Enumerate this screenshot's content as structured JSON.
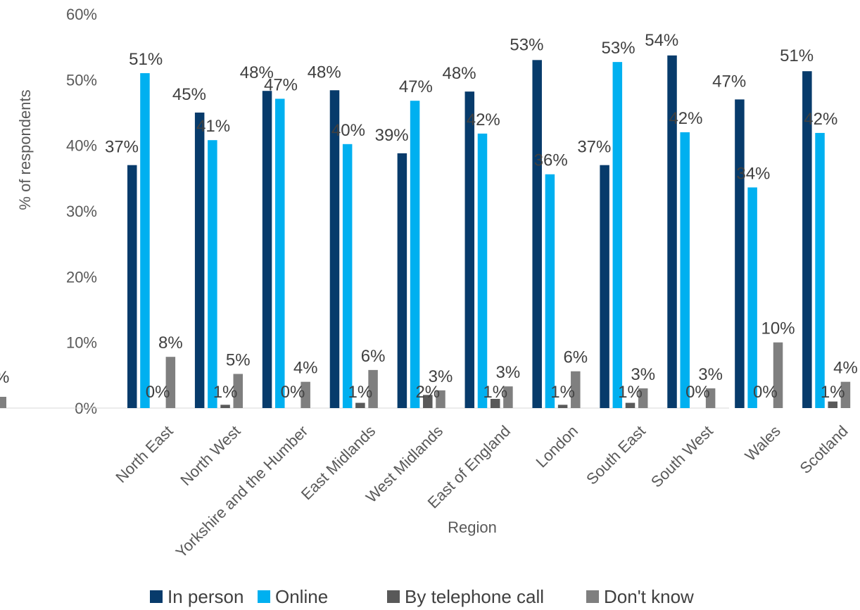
{
  "chart_data": {
    "type": "bar",
    "title": "",
    "xlabel": "Region",
    "ylabel": "% of respondents",
    "ylim": [
      0,
      60
    ],
    "yticks": [
      "0%",
      "10%",
      "20%",
      "30%",
      "40%",
      "50%",
      "60%"
    ],
    "grid": false,
    "legend_position": "bottom",
    "partial_left_label": "%",
    "categories": [
      "North East",
      "North West",
      "Yorkshire and the Humber",
      "East Midlands",
      "West Midlands",
      "East of England",
      "London",
      "South East",
      "South West",
      "Wales",
      "Scotland"
    ],
    "series": [
      {
        "name": "In person",
        "color": "#073B6B",
        "values": [
          37,
          45,
          48.3,
          48.4,
          38.8,
          48.2,
          53,
          37,
          53.7,
          47,
          51.3
        ],
        "labels": [
          "37%",
          "45%",
          "48%",
          "48%",
          "39%",
          "48%",
          "53%",
          "37%",
          "54%",
          "47%",
          "51%"
        ]
      },
      {
        "name": "Online",
        "color": "#00B0F0",
        "values": [
          51,
          40.8,
          47.1,
          40.2,
          46.8,
          41.8,
          35.6,
          52.7,
          42,
          33.6,
          41.9
        ],
        "labels": [
          "51%",
          "41%",
          "47%",
          "40%",
          "47%",
          "42%",
          "36%",
          "53%",
          "42%",
          "34%",
          "42%"
        ]
      },
      {
        "name": "By telephone call",
        "color": "#595959",
        "values": [
          0,
          0.5,
          0,
          0.8,
          2,
          1.4,
          0.5,
          0.8,
          0,
          0,
          1
        ],
        "labels": [
          "0%",
          "1%",
          "0%",
          "1%",
          "2%",
          "1%",
          "1%",
          "1%",
          "0%",
          "0%",
          "1%"
        ]
      },
      {
        "name": "Don't know",
        "color": "#7F7F7F",
        "values": [
          7.8,
          5.2,
          4,
          5.8,
          2.7,
          3.3,
          5.6,
          3,
          3,
          10,
          4
        ],
        "labels": [
          "8%",
          "5%",
          "4%",
          "6%",
          "3%",
          "3%",
          "6%",
          "3%",
          "3%",
          "10%",
          "4%"
        ]
      }
    ]
  }
}
